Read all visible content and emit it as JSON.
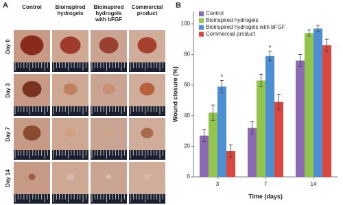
{
  "panel_a": {
    "label": "A",
    "columns": [
      "Control",
      "Bioinspired hydrogels",
      "Bioinspired hydrogels with bFGF",
      "Commercial product"
    ],
    "rows": [
      "Day 0",
      "Day 3",
      "Day 7",
      "Day 14"
    ]
  },
  "chart_data": {
    "type": "bar",
    "panel_label": "B",
    "categories": [
      "3",
      "7",
      "14"
    ],
    "series": [
      {
        "name": "Control",
        "color": "#8b69b3",
        "values": [
          27,
          32,
          76
        ],
        "errors": [
          4,
          4,
          4
        ]
      },
      {
        "name": "Bioinspired hydrogels",
        "color": "#92c44e",
        "values": [
          42,
          63,
          94
        ],
        "errors": [
          5,
          4,
          2
        ]
      },
      {
        "name": "Bioinspired hydrogels with bFGF",
        "color": "#4d8fd1",
        "values": [
          59,
          79,
          97
        ],
        "errors": [
          4,
          3,
          2
        ],
        "significance_labels": [
          "*",
          "*",
          null
        ]
      },
      {
        "name": "Commercial product",
        "color": "#d8483f",
        "values": [
          17,
          49,
          86
        ],
        "errors": [
          4,
          5,
          4
        ]
      }
    ],
    "ylim": [
      0,
      108
    ],
    "yticks": [
      0,
      20,
      40,
      60,
      80,
      100
    ],
    "ylabel": "Wound closure (%)",
    "xlabel": "Time (days)",
    "legend": "upper left",
    "grid": false
  }
}
